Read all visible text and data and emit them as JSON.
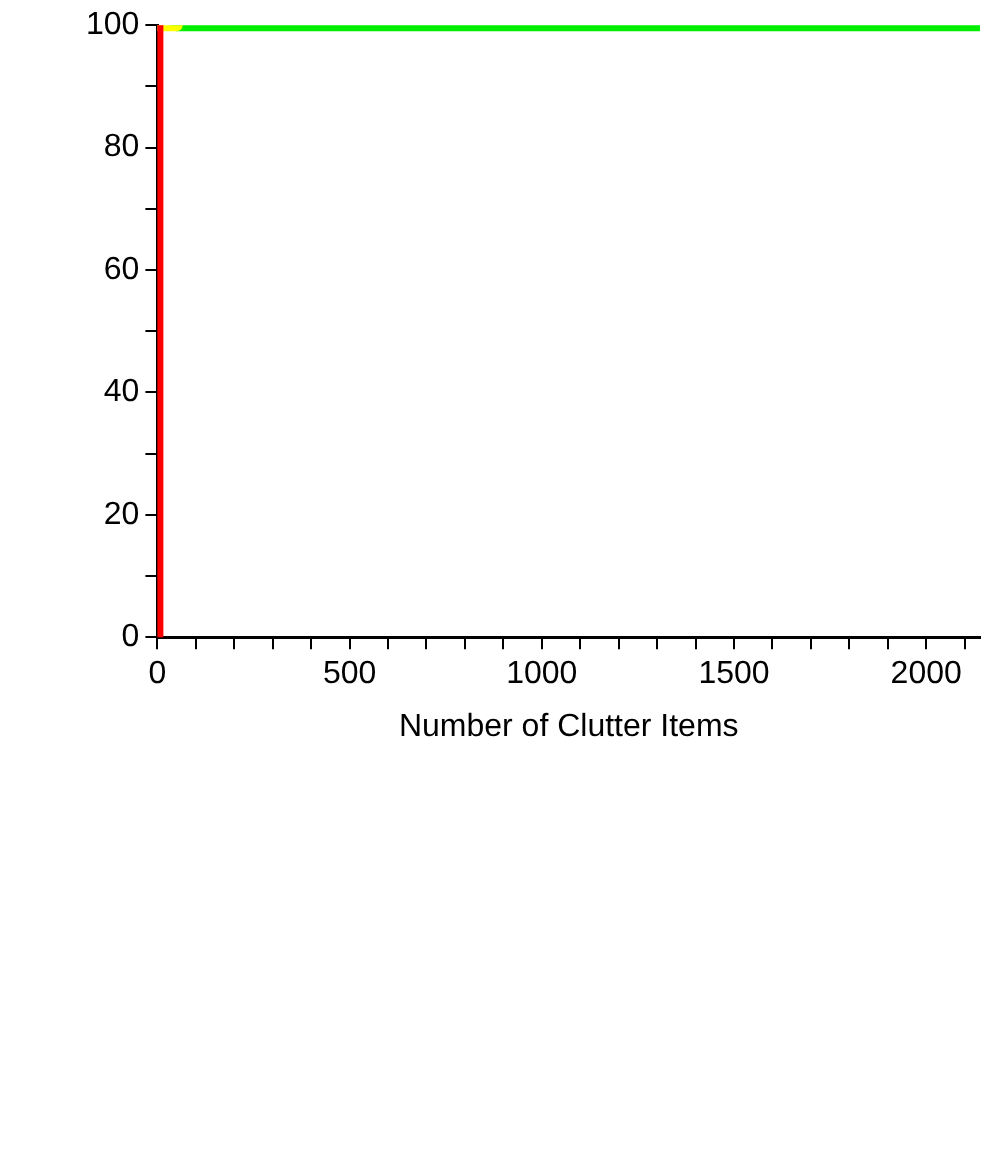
{
  "chart_data": {
    "type": "line",
    "xlabel": "Number of Clutter Items",
    "series": [
      {
        "color": "#ff0000",
        "x": [
          0,
          0
        ],
        "values": [
          0,
          100
        ]
      },
      {
        "color": "#ffff00",
        "x": [
          0,
          50
        ],
        "values": [
          100,
          100
        ]
      },
      {
        "color": "#00ee00",
        "x": [
          50,
          2140
        ],
        "values": [
          100,
          100
        ]
      }
    ],
    "xlim": [
      0,
      2140
    ],
    "xticks": [
      0,
      {
        "value": 100,
        "label": null
      },
      {
        "value": 200,
        "label": null
      },
      {
        "value": 300,
        "label": null
      },
      {
        "value": 400,
        "label": null
      },
      500,
      {
        "value": 600,
        "label": null
      },
      {
        "value": 700,
        "label": null
      },
      {
        "value": 800,
        "label": null
      },
      {
        "value": 900,
        "label": null
      },
      1000,
      {
        "value": 1100,
        "label": null
      },
      {
        "value": 1200,
        "label": null
      },
      {
        "value": 1300,
        "label": null
      },
      {
        "value": 1400,
        "label": null
      },
      1500,
      {
        "value": 1600,
        "label": null
      },
      {
        "value": 1700,
        "label": null
      },
      {
        "value": 1800,
        "label": null
      },
      {
        "value": 1900,
        "label": null
      },
      2000,
      {
        "value": 2100,
        "label": null
      }
    ],
    "ylim": [
      0,
      100
    ],
    "yticks": [
      0,
      {
        "value": 10,
        "label": null
      },
      20,
      {
        "value": 30,
        "label": null
      },
      40,
      {
        "value": 50,
        "label": null
      },
      60,
      {
        "value": 70,
        "label": null
      },
      80,
      {
        "value": 90,
        "label": null
      },
      100
    ],
    "grid": false,
    "legend": false,
    "marker": "none",
    "line_style": "solid"
  }
}
